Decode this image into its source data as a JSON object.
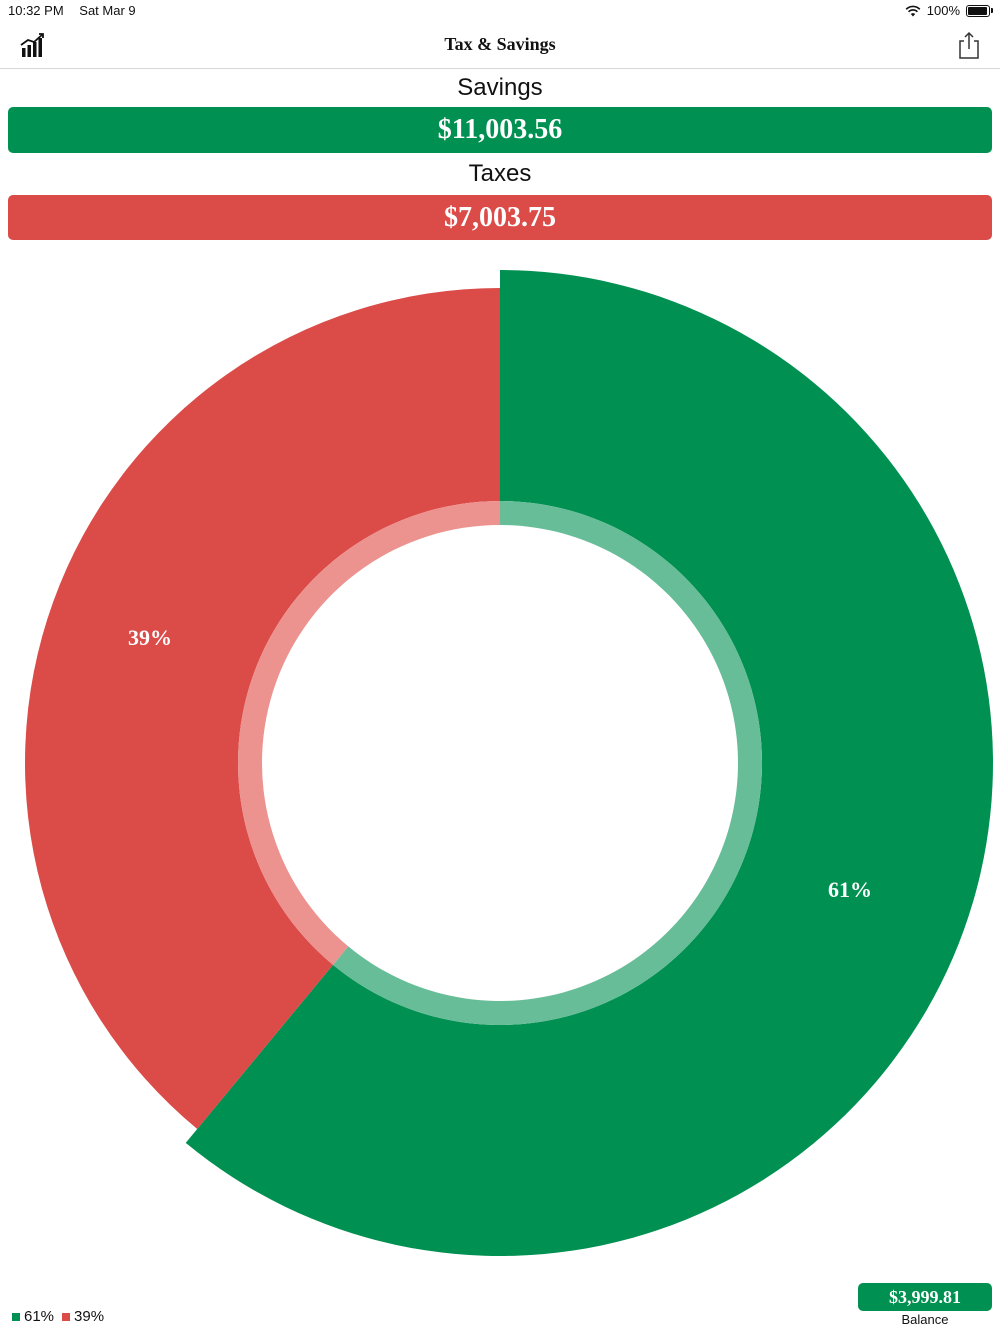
{
  "status_bar": {
    "time": "10:32 PM",
    "date": "Sat Mar 9",
    "battery": "100%",
    "battery_level": 1.0
  },
  "nav": {
    "title": "Tax & Savings",
    "left_icon": "chart-bars-icon",
    "right_icon": "share-icon"
  },
  "savings": {
    "label": "Savings",
    "amount": "$11,003.56"
  },
  "taxes": {
    "label": "Taxes",
    "amount": "$7,003.75"
  },
  "colors": {
    "savings": "#009051",
    "taxes": "#DB4B48",
    "savings_inner": "#67BD98",
    "taxes_inner": "#EC9390"
  },
  "chart_data": {
    "type": "pie",
    "slices": [
      {
        "value": 61,
        "label": "61%",
        "color": "#009051"
      },
      {
        "value": 39,
        "label": "39%",
        "color": "#DB4B48"
      }
    ]
  },
  "legend": [
    {
      "label": "61%",
      "color": "#009051"
    },
    {
      "label": "39%",
      "color": "#DB4B48"
    }
  ],
  "balance": {
    "amount": "$3,999.81",
    "label": "Balance"
  }
}
